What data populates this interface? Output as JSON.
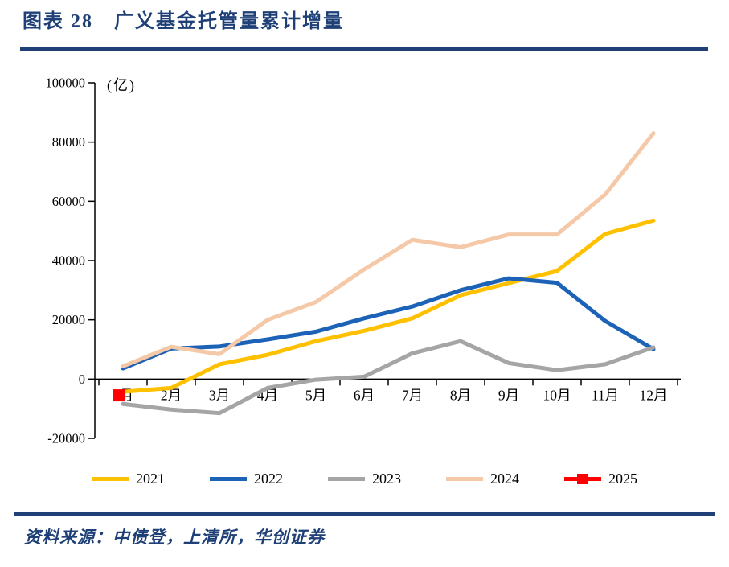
{
  "header": {
    "title": "图表 28　广义基金托管量累计增量"
  },
  "chart_data": {
    "type": "line",
    "title": "广义基金托管量累计增量",
    "unit_label": "(亿)",
    "categories": [
      "1月",
      "2月",
      "3月",
      "4月",
      "5月",
      "6月",
      "7月",
      "8月",
      "9月",
      "10月",
      "11月",
      "12月"
    ],
    "series": [
      {
        "name": "2021",
        "color": "#FFC000",
        "values": [
          -4300,
          -3000,
          5000,
          8200,
          12800,
          16300,
          20500,
          28300,
          32400,
          36500,
          49000,
          53500
        ]
      },
      {
        "name": "2022",
        "color": "#1C63B7",
        "values": [
          3600,
          10300,
          11000,
          13400,
          16000,
          20500,
          24500,
          30000,
          34000,
          32500,
          19600,
          10100
        ]
      },
      {
        "name": "2023",
        "color": "#A5A5A5",
        "values": [
          -8400,
          -10300,
          -11500,
          -3000,
          -200,
          800,
          8700,
          12800,
          5400,
          3000,
          5000,
          10700
        ]
      },
      {
        "name": "2024",
        "color": "#F5C9A8",
        "values": [
          4300,
          10900,
          8400,
          20000,
          26000,
          37000,
          47000,
          44500,
          48800,
          48800,
          62300,
          83000
        ]
      },
      {
        "name": "2025",
        "color": "#FF0000",
        "marker": "square",
        "values": [
          -5500,
          null,
          null,
          null,
          null,
          null,
          null,
          null,
          null,
          null,
          null,
          null
        ]
      }
    ],
    "ylim": [
      -20000,
      100000
    ],
    "ytick_step": 20000,
    "grid": false,
    "legend_position": "bottom"
  },
  "footer": {
    "source": "资料来源：中债登，上清所，华创证券"
  },
  "colors": {
    "accent_navy": "#1F4077",
    "axis": "#000000"
  }
}
